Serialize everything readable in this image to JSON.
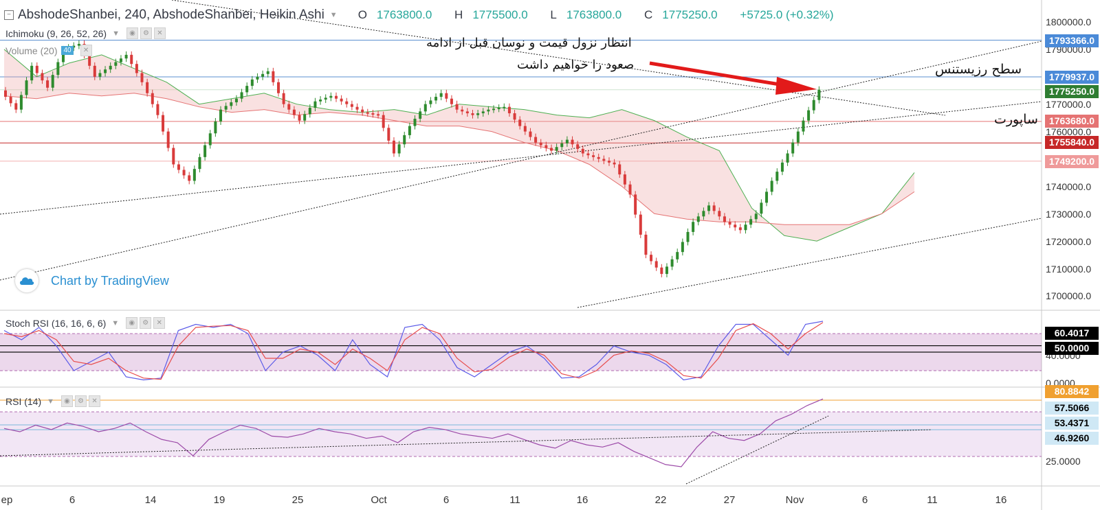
{
  "header": {
    "title": "AbshodeShanbei, 240, AbshodeShanbei, Heikin Ashi",
    "open_label": "O",
    "open": "1763800.0",
    "high_label": "H",
    "high": "1775500.0",
    "low_label": "L",
    "low": "1763800.0",
    "close_label": "C",
    "close": "1775250.0",
    "change": "+5725.0 (+0.32%)"
  },
  "indicators": {
    "ichimoku": "Ichimoku (9, 26, 52, 26)",
    "volume": "Volume (20)",
    "volume_badge": "40",
    "stoch": "Stoch RSI (16, 16, 6, 6)",
    "rsi": "RSI (14)"
  },
  "watermark": "Chart by TradingView",
  "annotations": {
    "note_line1": "انتظار نزول قیمت و نوسان قبل از ادامه",
    "note_line2": "صعود را خواهیم داشت",
    "resistance": "سطح رزیستنس",
    "support": "ساپورت"
  },
  "price_tags": [
    {
      "value": "1793366.0",
      "color": "#4a8ad8"
    },
    {
      "value": "1779937.0",
      "color": "#4a8ad8"
    },
    {
      "value": "1775250.0",
      "color": "#2e7d32"
    },
    {
      "value": "1763680.0",
      "color": "#e57373"
    },
    {
      "value": "1755840.0",
      "color": "#c62828"
    },
    {
      "value": "1749200.0",
      "color": "#ef9a9a"
    }
  ],
  "osc_tags": [
    {
      "value": "60.4017",
      "color": "#000000",
      "text": "#ffffff"
    },
    {
      "value": "50.0000",
      "color": "#000000",
      "text": "#ffffff"
    },
    {
      "value": "80.8842",
      "color": "#f0a030",
      "text": "#ffffff"
    },
    {
      "value": "57.5066",
      "color": "#cfe8f5",
      "text": "#000000"
    },
    {
      "value": "53.4371",
      "color": "#cfe8f5",
      "text": "#000000"
    },
    {
      "value": "46.9260",
      "color": "#cfe8f5",
      "text": "#000000"
    }
  ],
  "chart_data": [
    {
      "type": "candlestick",
      "chart_style": "Heikin Ashi",
      "title": "AbshodeShanbei, 240",
      "ylim": [
        1695000,
        1805000
      ],
      "y_ticks": [
        "1800000.0",
        "1790000.0",
        "1780000.0",
        "1770000.0",
        "1760000.0",
        "1740000.0",
        "1730000.0",
        "1720000.0",
        "1710000.0",
        "1700000.0"
      ],
      "x_ticks": [
        "ep",
        "6",
        "14",
        "19",
        "25",
        "Oct",
        "6",
        "11",
        "16",
        "22",
        "27",
        "Nov",
        "6",
        "11",
        "16"
      ],
      "price_path": [
        [
          0,
          1775000
        ],
        [
          1,
          1768000
        ],
        [
          2,
          1784000
        ],
        [
          3,
          1776000
        ],
        [
          4,
          1790000
        ],
        [
          5,
          1792000
        ],
        [
          6,
          1780000
        ],
        [
          7,
          1784000
        ],
        [
          8,
          1788000
        ],
        [
          9,
          1778000
        ],
        [
          10,
          1766000
        ],
        [
          11,
          1748000
        ],
        [
          12,
          1742000
        ],
        [
          13,
          1755000
        ],
        [
          14,
          1768000
        ],
        [
          15,
          1772000
        ],
        [
          16,
          1779000
        ],
        [
          17,
          1782000
        ],
        [
          18,
          1770000
        ],
        [
          19,
          1764000
        ],
        [
          20,
          1771000
        ],
        [
          21,
          1773000
        ],
        [
          22,
          1770000
        ],
        [
          23,
          1767000
        ],
        [
          24,
          1766000
        ],
        [
          25,
          1752000
        ],
        [
          26,
          1762000
        ],
        [
          27,
          1770000
        ],
        [
          28,
          1774000
        ],
        [
          29,
          1768000
        ],
        [
          30,
          1766000
        ],
        [
          31,
          1768000
        ],
        [
          32,
          1769000
        ],
        [
          33,
          1762000
        ],
        [
          34,
          1756000
        ],
        [
          35,
          1753000
        ],
        [
          36,
          1757000
        ],
        [
          37,
          1752000
        ],
        [
          38,
          1750000
        ],
        [
          39,
          1748000
        ],
        [
          40,
          1737000
        ],
        [
          41,
          1715000
        ],
        [
          42,
          1708000
        ],
        [
          43,
          1716000
        ],
        [
          44,
          1727000
        ],
        [
          45,
          1733000
        ],
        [
          46,
          1727000
        ],
        [
          47,
          1724000
        ],
        [
          48,
          1730000
        ],
        [
          49,
          1742000
        ],
        [
          50,
          1752000
        ],
        [
          51,
          1764000
        ],
        [
          52,
          1775250
        ]
      ],
      "ichimoku_cloud": {
        "span_a": [
          1790000,
          1780000,
          1785000,
          1788000,
          1783000,
          1778000,
          1770000,
          1772000,
          1774000,
          1770000,
          1768000,
          1767000,
          1768000,
          1766000,
          1770000,
          1769000,
          1768000,
          1766000,
          1765000,
          1768000,
          1764000,
          1758000,
          1753000,
          1732000,
          1722000,
          1720000,
          1725000,
          1730000,
          1745000
        ],
        "span_b": [
          1773000,
          1772000,
          1774000,
          1773000,
          1774000,
          1772000,
          1769000,
          1767000,
          1768000,
          1766000,
          1767000,
          1766000,
          1764000,
          1762000,
          1762000,
          1760000,
          1756000,
          1753000,
          1748000,
          1740000,
          1730000,
          1728000,
          1727000,
          1727000,
          1726000,
          1726000,
          1726000,
          1730000,
          1738000
        ]
      },
      "horizontal_levels": [
        1793366.0,
        1779937.0,
        1775250.0,
        1763680.0,
        1755840.0,
        1749200.0
      ]
    },
    {
      "type": "line",
      "title": "Stoch RSI (16, 16, 6, 6)",
      "ylim": [
        -5,
        105
      ],
      "y_ticks": [
        "40.0000",
        "0.0000"
      ],
      "levels": [
        60.4017,
        50.0
      ],
      "series": [
        {
          "name": "K",
          "color": "#5b5be8",
          "values": [
            85,
            70,
            90,
            60,
            20,
            35,
            50,
            10,
            5,
            8,
            85,
            95,
            90,
            95,
            80,
            20,
            50,
            60,
            45,
            20,
            70,
            30,
            10,
            90,
            95,
            70,
            25,
            10,
            30,
            50,
            60,
            40,
            8,
            10,
            30,
            60,
            50,
            45,
            30,
            5,
            10,
            60,
            95,
            95,
            70,
            45,
            95,
            100
          ]
        },
        {
          "name": "D",
          "color": "#e84c4c",
          "values": [
            80,
            75,
            85,
            70,
            35,
            30,
            40,
            20,
            8,
            6,
            60,
            90,
            92,
            93,
            85,
            40,
            40,
            55,
            50,
            30,
            55,
            40,
            20,
            70,
            90,
            80,
            40,
            18,
            22,
            42,
            55,
            45,
            15,
            8,
            20,
            45,
            52,
            48,
            35,
            12,
            8,
            40,
            85,
            96,
            80,
            55,
            80,
            98
          ]
        }
      ]
    },
    {
      "type": "line",
      "title": "RSI (14)",
      "ylim": [
        18,
        85
      ],
      "y_ticks": [
        "25.0000"
      ],
      "levels": [
        80.8842,
        57.5066,
        53.4371,
        46.926
      ],
      "series": [
        {
          "name": "RSI",
          "color": "#9c4aa8",
          "values": [
            55,
            52,
            58,
            54,
            60,
            57,
            52,
            55,
            60,
            52,
            45,
            42,
            30,
            45,
            52,
            58,
            55,
            48,
            47,
            50,
            55,
            52,
            50,
            46,
            48,
            42,
            52,
            56,
            54,
            50,
            48,
            46,
            50,
            45,
            40,
            37,
            44,
            40,
            38,
            42,
            34,
            28,
            22,
            20,
            38,
            52,
            46,
            44,
            50,
            62,
            68,
            76,
            82
          ]
        }
      ]
    }
  ]
}
